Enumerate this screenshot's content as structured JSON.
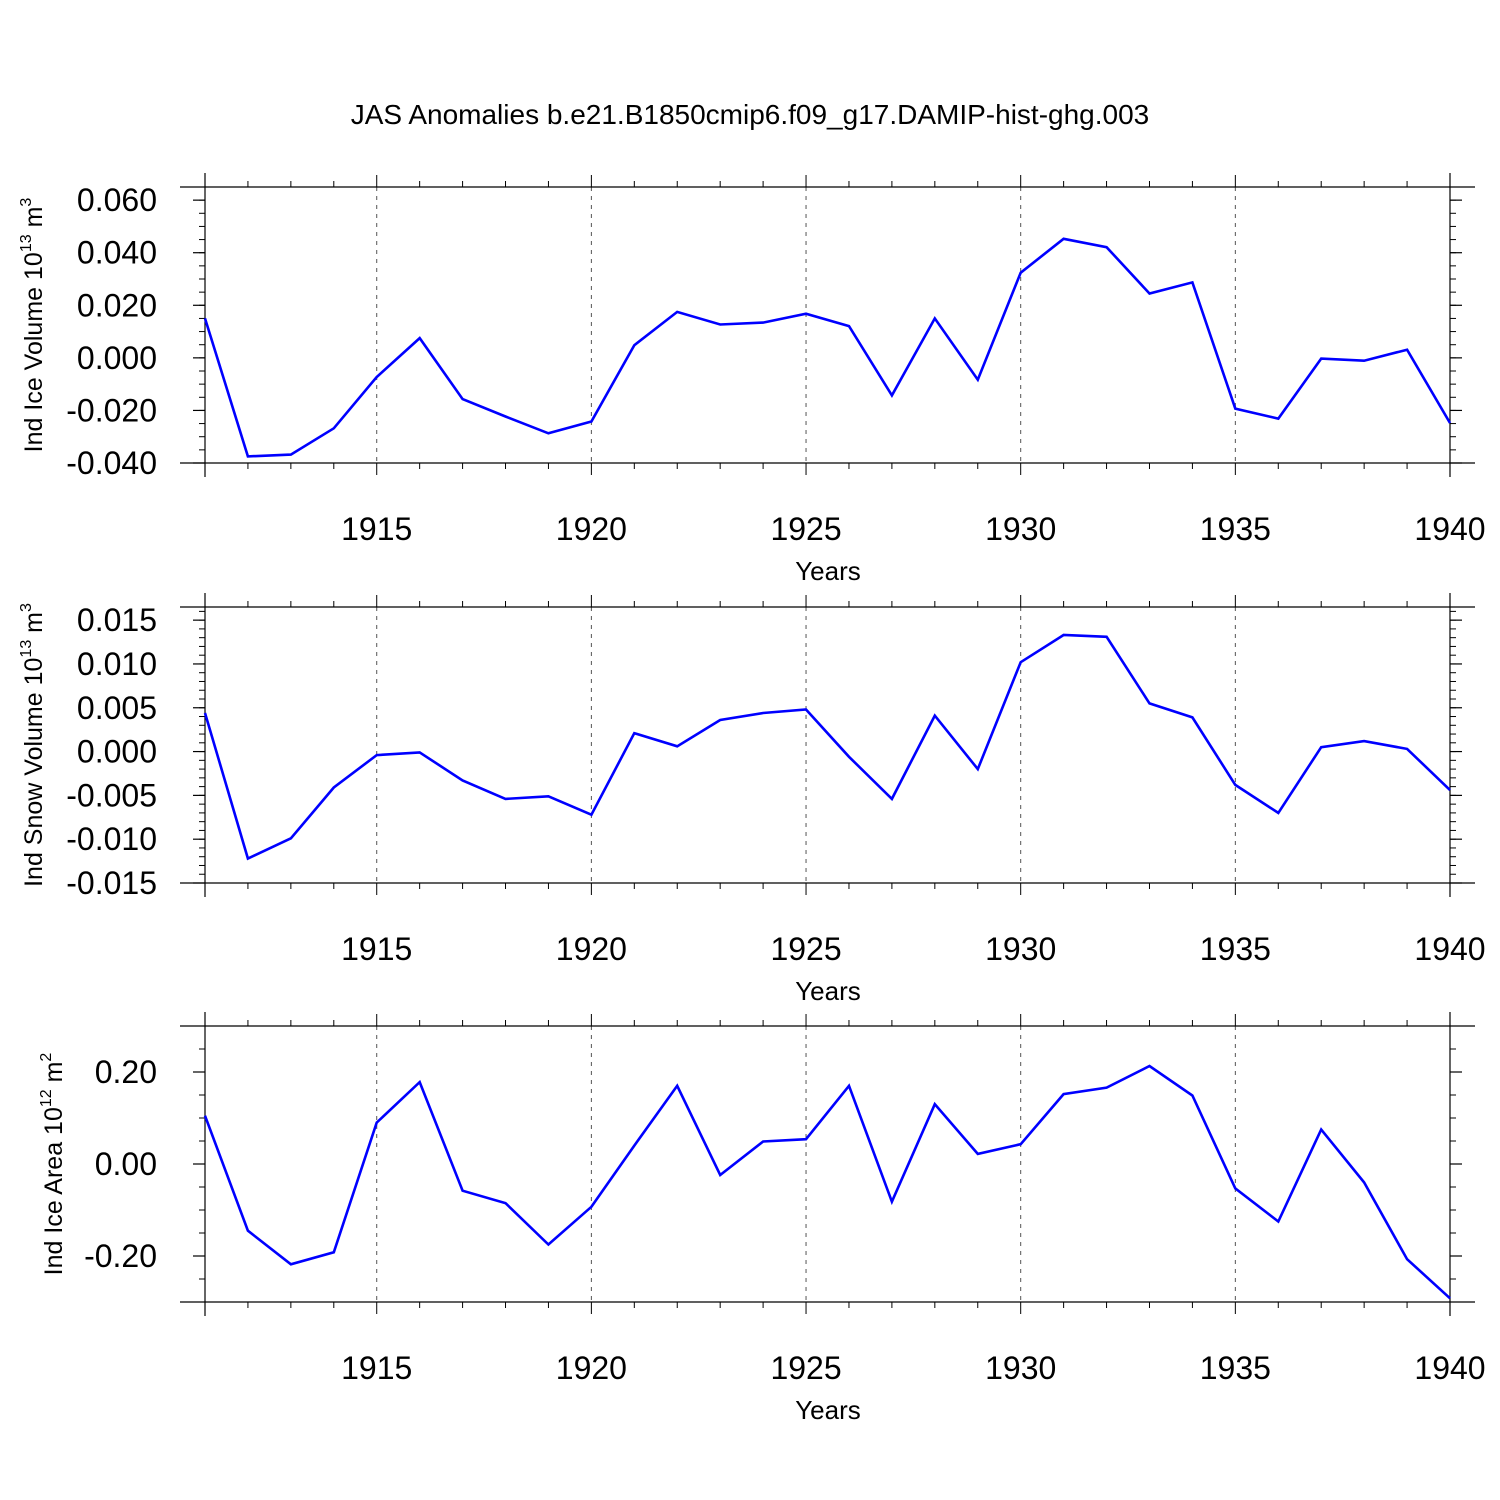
{
  "chart_data": {
    "title": "JAS Anomalies b.e21.B1850cmip6.f09_g17.DAMIP-hist-ghg.003",
    "line_color": "#0000ff",
    "panels": [
      {
        "type": "line",
        "ylabel": {
          "text": "Ind Ice Volume 10",
          "sup": "13",
          "mid": " m",
          "sup2": "3"
        },
        "xlabel": "Years",
        "xlim": [
          1911,
          1940
        ],
        "ylim": [
          -0.04,
          0.065
        ],
        "yticks": [
          -0.04,
          -0.02,
          0.0,
          0.02,
          0.04,
          0.06
        ],
        "ytick_labels": [
          "-0.040",
          "-0.020",
          "0.000",
          "0.020",
          "0.040",
          "0.060"
        ],
        "yminor_step": 0.005,
        "xticks": [
          1915,
          1920,
          1925,
          1930,
          1935,
          1940
        ],
        "xtick_labels": [
          "1915",
          "1920",
          "1925",
          "1930",
          "1935",
          "1940"
        ],
        "grid_x": [
          1915,
          1920,
          1925,
          1930,
          1935
        ],
        "x": [
          1911,
          1912,
          1913,
          1914,
          1915,
          1916,
          1917,
          1918,
          1919,
          1920,
          1921,
          1922,
          1923,
          1924,
          1925,
          1926,
          1927,
          1928,
          1929,
          1930,
          1931,
          1932,
          1933,
          1934,
          1935,
          1936,
          1937,
          1938,
          1939,
          1940
        ],
        "values": [
          0.015,
          -0.0375,
          -0.0368,
          -0.0268,
          -0.0073,
          0.0075,
          -0.0157,
          -0.0223,
          -0.0287,
          -0.0242,
          0.0048,
          0.0175,
          0.0127,
          0.0134,
          0.0168,
          0.0121,
          -0.0143,
          0.015,
          -0.0083,
          0.0324,
          0.0453,
          0.0421,
          0.0245,
          0.0287,
          -0.0193,
          -0.0231,
          -0.0003,
          -0.0011,
          0.0031,
          -0.0248
        ]
      },
      {
        "type": "line",
        "ylabel": {
          "text": "Ind Snow Volume 10",
          "sup": "13",
          "mid": " m",
          "sup2": "3"
        },
        "xlabel": "Years",
        "xlim": [
          1911,
          1940
        ],
        "ylim": [
          -0.015,
          0.0165
        ],
        "yticks": [
          -0.015,
          -0.01,
          -0.005,
          0.0,
          0.005,
          0.01,
          0.015
        ],
        "ytick_labels": [
          "-0.015",
          "-0.010",
          "-0.005",
          "0.000",
          "0.005",
          "0.010",
          "0.015"
        ],
        "yminor_step": 0.001,
        "xticks": [
          1915,
          1920,
          1925,
          1930,
          1935,
          1940
        ],
        "xtick_labels": [
          "1915",
          "1920",
          "1925",
          "1930",
          "1935",
          "1940"
        ],
        "grid_x": [
          1915,
          1920,
          1925,
          1930,
          1935
        ],
        "x": [
          1911,
          1912,
          1913,
          1914,
          1915,
          1916,
          1917,
          1918,
          1919,
          1920,
          1921,
          1922,
          1923,
          1924,
          1925,
          1926,
          1927,
          1928,
          1929,
          1930,
          1931,
          1932,
          1933,
          1934,
          1935,
          1936,
          1937,
          1938,
          1939,
          1940
        ],
        "values": [
          0.0044,
          -0.0122,
          -0.0099,
          -0.0041,
          -0.0004,
          -0.0001,
          -0.0033,
          -0.0054,
          -0.0051,
          -0.0072,
          0.0021,
          0.0006,
          0.0036,
          0.0044,
          0.0048,
          -0.0006,
          -0.0054,
          0.0041,
          -0.002,
          0.0102,
          0.0133,
          0.0131,
          0.0055,
          0.0039,
          -0.0038,
          -0.007,
          0.0005,
          0.0012,
          0.0003,
          -0.0044
        ]
      },
      {
        "type": "line",
        "ylabel": {
          "text": "Ind Ice Area 10",
          "sup": "12",
          "mid": " m",
          "sup2": "2"
        },
        "xlabel": "Years",
        "xlim": [
          1911,
          1940
        ],
        "ylim": [
          -0.3,
          0.3
        ],
        "yticks": [
          -0.2,
          0.0,
          0.2
        ],
        "ytick_labels": [
          "-0.20",
          "0.00",
          "0.20"
        ],
        "yminor_step": 0.05,
        "xticks": [
          1915,
          1920,
          1925,
          1930,
          1935,
          1940
        ],
        "xtick_labels": [
          "1915",
          "1920",
          "1925",
          "1930",
          "1935",
          "1940"
        ],
        "grid_x": [
          1915,
          1920,
          1925,
          1930,
          1935
        ],
        "x": [
          1911,
          1912,
          1913,
          1914,
          1915,
          1916,
          1917,
          1918,
          1919,
          1920,
          1921,
          1922,
          1923,
          1924,
          1925,
          1926,
          1927,
          1928,
          1929,
          1930,
          1931,
          1932,
          1933,
          1934,
          1935,
          1936,
          1937,
          1938,
          1939,
          1940
        ],
        "values": [
          0.105,
          -0.145,
          -0.218,
          -0.192,
          0.09,
          0.178,
          -0.058,
          -0.085,
          -0.175,
          -0.093,
          0.04,
          0.17,
          -0.024,
          0.049,
          0.054,
          0.17,
          -0.082,
          0.13,
          0.022,
          0.043,
          0.152,
          0.166,
          0.213,
          0.149,
          -0.053,
          -0.125,
          0.075,
          -0.04,
          -0.207,
          -0.292
        ]
      }
    ]
  }
}
